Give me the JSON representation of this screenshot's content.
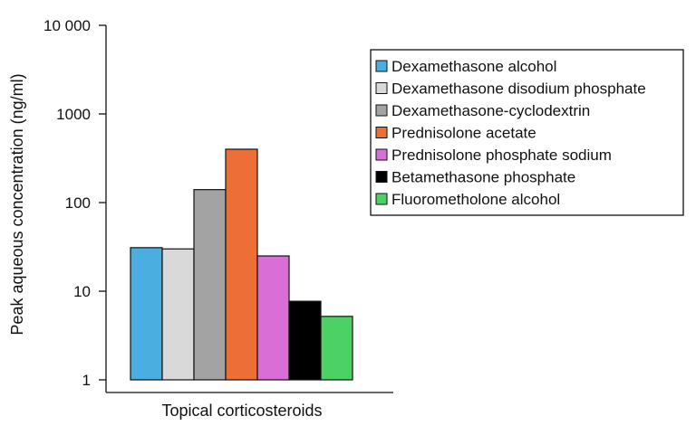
{
  "chart_data": {
    "type": "bar",
    "scale": "log",
    "ylim": [
      1,
      10000
    ],
    "grid": false,
    "legend_position": "top-right",
    "title": "",
    "xlabel": "Topical corticosteroids",
    "ylabel": "Peak aqueous concentration (ng/ml)",
    "y_ticks": [
      {
        "value": 1,
        "label": "1"
      },
      {
        "value": 10,
        "label": "10"
      },
      {
        "value": 100,
        "label": "100"
      },
      {
        "value": 1000,
        "label": "1000"
      },
      {
        "value": 10000,
        "label": "10 000"
      }
    ],
    "series": [
      {
        "name": "Dexamethasone alcohol",
        "value": 31,
        "color": "#4aaee0"
      },
      {
        "name": "Dexamethasone disodium phosphate",
        "value": 30,
        "color": "#d9d9d9"
      },
      {
        "name": "Dexamethasone-cyclodextrin",
        "value": 140,
        "color": "#a3a3a3"
      },
      {
        "name": "Prednisolone acetate",
        "value": 400,
        "color": "#ec7035"
      },
      {
        "name": "Prednisolone phosphate sodium",
        "value": 25,
        "color": "#d96fd6"
      },
      {
        "name": "Betamethasone phosphate",
        "value": 7.7,
        "color": "#000000"
      },
      {
        "name": "Fluorometholone alcohol",
        "value": 5.2,
        "color": "#4cd165"
      }
    ]
  }
}
